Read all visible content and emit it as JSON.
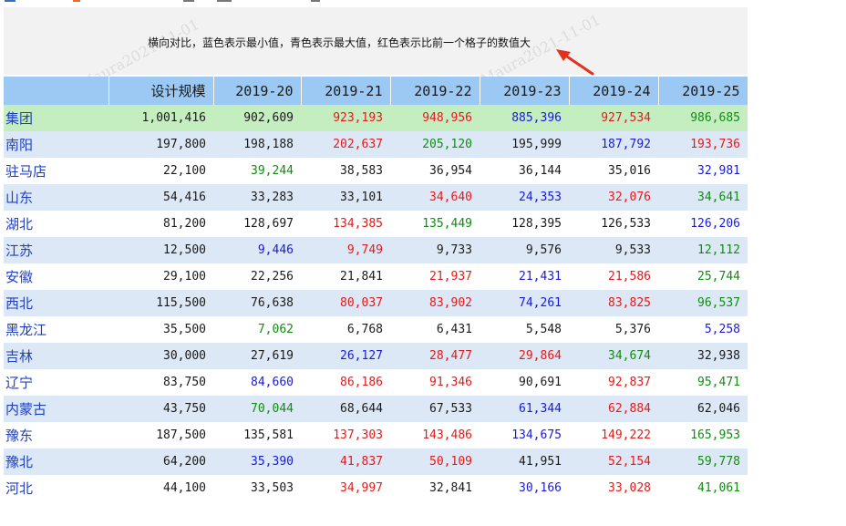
{
  "note": "横向对比，蓝色表示最小值，青色表示最大值，红色表示比前一个格子的数值大",
  "watermark": "Maura2021-11-01",
  "colors": {
    "header_bg": "#9cc9f4",
    "total_bg": "#c4eec0",
    "even_row_bg": "#dce8f6",
    "red": "#e01b1b",
    "green": "#138a13",
    "blue": "#1a1ad6",
    "black": "#1a1a1a",
    "region_text": "#1f3fc1"
  },
  "table": {
    "headers": [
      "",
      "设计规模",
      "2019-20",
      "2019-21",
      "2019-22",
      "2019-23",
      "2019-24",
      "2019-25"
    ],
    "rows": [
      {
        "name": "集团",
        "values": [
          "1,001,416",
          "902,609",
          "923,193",
          "948,956",
          "885,396",
          "927,534",
          "986,685"
        ],
        "colors": [
          "k",
          "k",
          "r",
          "r",
          "b",
          "r",
          "g"
        ]
      },
      {
        "name": "南阳",
        "values": [
          "197,800",
          "198,188",
          "202,637",
          "205,120",
          "195,999",
          "187,792",
          "193,736"
        ],
        "colors": [
          "k",
          "k",
          "r",
          "g",
          "k",
          "b",
          "r"
        ]
      },
      {
        "name": "驻马店",
        "values": [
          "22,100",
          "39,244",
          "38,583",
          "36,954",
          "36,144",
          "35,016",
          "32,981"
        ],
        "colors": [
          "k",
          "g",
          "k",
          "k",
          "k",
          "k",
          "b"
        ]
      },
      {
        "name": "山东",
        "values": [
          "54,416",
          "33,283",
          "33,101",
          "34,640",
          "24,353",
          "32,076",
          "34,641"
        ],
        "colors": [
          "k",
          "k",
          "k",
          "r",
          "b",
          "r",
          "g"
        ]
      },
      {
        "name": "湖北",
        "values": [
          "81,200",
          "128,697",
          "134,385",
          "135,449",
          "128,395",
          "126,533",
          "126,206"
        ],
        "colors": [
          "k",
          "k",
          "r",
          "g",
          "k",
          "k",
          "b"
        ]
      },
      {
        "name": "江苏",
        "values": [
          "12,500",
          "9,446",
          "9,749",
          "9,733",
          "9,576",
          "9,533",
          "12,112"
        ],
        "colors": [
          "k",
          "b",
          "r",
          "k",
          "k",
          "k",
          "g"
        ]
      },
      {
        "name": "安徽",
        "values": [
          "29,100",
          "22,256",
          "21,841",
          "21,937",
          "21,431",
          "21,586",
          "25,744"
        ],
        "colors": [
          "k",
          "k",
          "k",
          "r",
          "b",
          "r",
          "g"
        ]
      },
      {
        "name": "西北",
        "values": [
          "115,500",
          "76,638",
          "80,037",
          "83,902",
          "74,261",
          "83,825",
          "96,537"
        ],
        "colors": [
          "k",
          "k",
          "r",
          "r",
          "b",
          "r",
          "g"
        ]
      },
      {
        "name": "黑龙江",
        "values": [
          "35,500",
          "7,062",
          "6,768",
          "6,431",
          "5,548",
          "5,376",
          "5,258"
        ],
        "colors": [
          "k",
          "g",
          "k",
          "k",
          "k",
          "k",
          "b"
        ]
      },
      {
        "name": "吉林",
        "values": [
          "30,000",
          "27,619",
          "26,127",
          "28,477",
          "29,864",
          "34,674",
          "32,938"
        ],
        "colors": [
          "k",
          "k",
          "b",
          "r",
          "r",
          "g",
          "k"
        ]
      },
      {
        "name": "辽宁",
        "values": [
          "83,750",
          "84,660",
          "86,186",
          "91,346",
          "90,691",
          "92,837",
          "95,471"
        ],
        "colors": [
          "k",
          "b",
          "r",
          "r",
          "k",
          "r",
          "g"
        ]
      },
      {
        "name": "内蒙古",
        "values": [
          "43,750",
          "70,044",
          "68,644",
          "67,533",
          "61,344",
          "62,884",
          "62,046"
        ],
        "colors": [
          "k",
          "g",
          "k",
          "k",
          "b",
          "r",
          "k"
        ]
      },
      {
        "name": "豫东",
        "values": [
          "187,500",
          "135,581",
          "137,303",
          "143,486",
          "134,675",
          "149,222",
          "165,953"
        ],
        "colors": [
          "k",
          "k",
          "r",
          "r",
          "b",
          "r",
          "g"
        ]
      },
      {
        "name": "豫北",
        "values": [
          "64,200",
          "35,390",
          "41,837",
          "50,109",
          "41,951",
          "52,154",
          "59,778"
        ],
        "colors": [
          "k",
          "b",
          "r",
          "r",
          "k",
          "r",
          "g"
        ]
      },
      {
        "name": "河北",
        "values": [
          "44,100",
          "33,503",
          "34,997",
          "32,841",
          "30,166",
          "33,028",
          "41,061"
        ],
        "colors": [
          "k",
          "k",
          "r",
          "k",
          "b",
          "r",
          "g"
        ]
      }
    ]
  }
}
